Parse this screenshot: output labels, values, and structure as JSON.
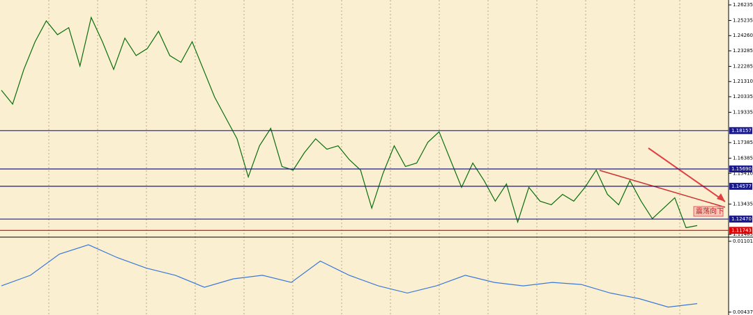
{
  "chart_data": [
    {
      "type": "line",
      "color": "#0a6e0a",
      "values": [
        1.2075,
        1.1986,
        1.2209,
        1.2387,
        1.2521,
        1.2432,
        1.2477,
        1.2231,
        1.2543,
        1.2387,
        1.2209,
        1.241,
        1.2298,
        1.2343,
        1.2454,
        1.2298,
        1.2254,
        1.2387,
        1.2209,
        1.2031,
        1.1897,
        1.1763,
        1.1518,
        1.1718,
        1.183,
        1.1585,
        1.1562,
        1.1674,
        1.1763,
        1.1696,
        1.1718,
        1.1629,
        1.1562,
        1.1317,
        1.154,
        1.1718,
        1.1585,
        1.1607,
        1.1741,
        1.1808,
        1.1629,
        1.1451,
        1.1607,
        1.1495,
        1.1362,
        1.1473,
        1.1228,
        1.1451,
        1.1362,
        1.1339,
        1.1406,
        1.1362,
        1.1451,
        1.1562,
        1.1406,
        1.1339,
        1.1495,
        1.1362,
        1.125,
        1.1317,
        1.1384,
        1.1192,
        1.1205
      ],
      "ylim": [
        1.1131,
        1.2655
      ],
      "yticks": [
        1.26235,
        1.25235,
        {
          "value": 1.2426,
          "label": "1.24260"
        },
        1.23285,
        1.22285,
        {
          "value": 1.2131,
          "label": "1.21310"
        },
        1.20335,
        1.19335,
        1.17385,
        1.16385,
        {
          "value": 1.1541,
          "label": "1.15410"
        },
        1.13435,
        1.11485
      ],
      "levels": [
        {
          "value": 1.18157,
          "color": "#1a1a8c"
        },
        {
          "value": {
            "value": 1.1569,
            "label": "1.15690"
          },
          "color": "#1a1a8c"
        },
        {
          "value": 1.14577,
          "color": "#1a1a8c"
        },
        {
          "value": {
            "value": 1.1247,
            "label": "1.12470"
          },
          "color": "#1a1a8c"
        },
        {
          "value": 1.11743,
          "color": "#e00000"
        }
      ],
      "annotation": "震荡向下"
    },
    {
      "type": "line",
      "color": "#3a78d8",
      "values": [
        0.00683,
        0.00782,
        0.00981,
        0.01068,
        0.00948,
        0.00849,
        0.00782,
        0.0067,
        0.00749,
        0.00782,
        0.00716,
        0.00915,
        0.00782,
        0.00683,
        0.00616,
        0.00683,
        0.00782,
        0.00716,
        0.00683,
        0.00716,
        0.00696,
        0.00616,
        0.00563,
        0.00484,
        0.00517
      ],
      "ylim": [
        0.0041,
        0.0114
      ],
      "yticks": [
        0.01101,
        0.00437
      ]
    }
  ]
}
